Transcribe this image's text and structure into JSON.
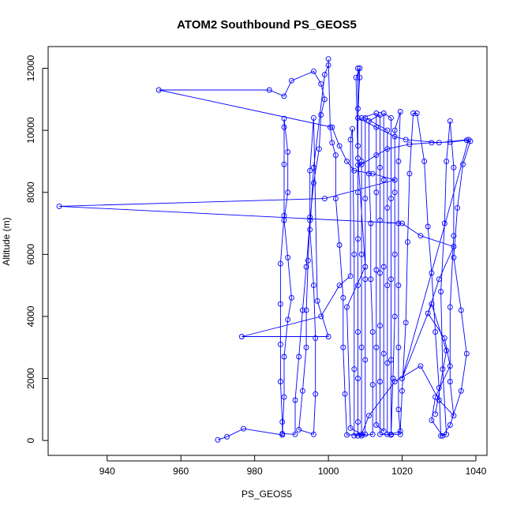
{
  "chart_data": {
    "type": "scatter",
    "title": "ATOM2 Southbound PS_GEOS5",
    "xlabel": "PS_GEOS5",
    "ylabel": "Altitude (m)",
    "xlim": [
      924,
      1043
    ],
    "ylim": [
      -480,
      12700
    ],
    "xticks": [
      940,
      960,
      980,
      1000,
      1020,
      1040
    ],
    "yticks": [
      0,
      2000,
      4000,
      6000,
      8000,
      10000,
      12000
    ],
    "grid": false,
    "marker": "open-circle",
    "connected": true,
    "color": "#0000ff",
    "series": [
      {
        "values": [
          [
            970.0,
            20
          ],
          [
            972.5,
            120
          ],
          [
            977.0,
            380
          ],
          [
            987.5,
            180
          ],
          [
            988.0,
            1400
          ],
          [
            988.0,
            2700
          ],
          [
            989.0,
            3900
          ],
          [
            990.0,
            4600
          ],
          [
            989.0,
            5900
          ],
          [
            988.0,
            7100
          ],
          [
            989.0,
            8000
          ],
          [
            989.0,
            9300
          ],
          [
            988.0,
            10380
          ],
          [
            988.0,
            10100
          ],
          [
            988.0,
            8900
          ],
          [
            988.0,
            7250
          ],
          [
            987.0,
            5700
          ],
          [
            987.0,
            4400
          ],
          [
            987.0,
            3100
          ],
          [
            987.0,
            1900
          ],
          [
            987.5,
            600
          ],
          [
            987.5,
            220
          ],
          [
            991.0,
            200
          ],
          [
            991.0,
            1300
          ],
          [
            992.0,
            2700
          ],
          [
            993.0,
            4200
          ],
          [
            994.0,
            5600
          ],
          [
            995.0,
            7100
          ],
          [
            996.0,
            8300
          ],
          [
            997.5,
            9400
          ],
          [
            998.0,
            10500
          ],
          [
            999.0,
            11000
          ],
          [
            998.0,
            11500
          ],
          [
            996.0,
            11900
          ],
          [
            990.0,
            11600
          ],
          [
            988.0,
            11100
          ],
          [
            984.0,
            11300
          ],
          [
            954.0,
            11300
          ],
          [
            1001.0,
            10100
          ],
          [
            1003.0,
            9500
          ],
          [
            1005.0,
            9000
          ],
          [
            1007.0,
            8700
          ],
          [
            1012.0,
            8600
          ],
          [
            1018.0,
            8400
          ],
          [
            999.0,
            7800
          ],
          [
            927.0,
            7550
          ],
          [
            1020.0,
            7000
          ],
          [
            1025.0,
            6600
          ],
          [
            1034.0,
            6250
          ],
          [
            1030.0,
            5200
          ],
          [
            1027.0,
            4100
          ],
          [
            1031.5,
            3300
          ],
          [
            1033.0,
            2400
          ],
          [
            1029.0,
            1400
          ],
          [
            1028.0,
            650
          ],
          [
            1031.0,
            150
          ],
          [
            1033.0,
            500
          ],
          [
            1036.0,
            1600
          ],
          [
            1037.5,
            2800
          ],
          [
            1036.0,
            4200
          ],
          [
            1034.0,
            5900
          ],
          [
            1035.0,
            7500
          ],
          [
            1036.5,
            8900
          ],
          [
            1038.5,
            9650
          ],
          [
            1037.5,
            9680
          ],
          [
            1033.0,
            9620
          ],
          [
            1028.0,
            9600
          ],
          [
            1022.0,
            9550
          ],
          [
            1016.0,
            9400
          ],
          [
            1013.0,
            9200
          ],
          [
            1009.0,
            8900
          ],
          [
            1008.0,
            8880
          ],
          [
            1008.0,
            12000
          ],
          [
            1008.5,
            11700
          ],
          [
            1008.0,
            10700
          ],
          [
            1008.0,
            9500
          ],
          [
            1008.0,
            8000
          ],
          [
            1008.0,
            6500
          ],
          [
            1008.0,
            5000
          ],
          [
            1008.0,
            3500
          ],
          [
            1008.0,
            2000
          ],
          [
            1008.0,
            600
          ],
          [
            1008.0,
            150
          ],
          [
            1012.0,
            200
          ],
          [
            1012.0,
            1800
          ],
          [
            1012.0,
            3500
          ],
          [
            1011.5,
            5200
          ],
          [
            1011.5,
            7000
          ],
          [
            1011.0,
            8600
          ],
          [
            1011.0,
            10300
          ],
          [
            1014.0,
            10500
          ],
          [
            1014.0,
            8800
          ],
          [
            1014.0,
            7100
          ],
          [
            1014.0,
            5400
          ],
          [
            1014.0,
            3700
          ],
          [
            1014.0,
            1900
          ],
          [
            1014.0,
            200
          ],
          [
            1017.0,
            180
          ],
          [
            1017.5,
            2000
          ],
          [
            1018.0,
            4000
          ],
          [
            1018.0,
            6000
          ],
          [
            1018.0,
            8000
          ],
          [
            1018.0,
            10000
          ],
          [
            1019.5,
            10600
          ],
          [
            1019.0,
            9000
          ],
          [
            1019.0,
            7000
          ],
          [
            1019.0,
            5000
          ],
          [
            1019.0,
            3000
          ],
          [
            1019.0,
            1000
          ],
          [
            1019.5,
            200
          ],
          [
            1016.0,
            200
          ],
          [
            1016.0,
            2500
          ],
          [
            1016.0,
            5000
          ],
          [
            1016.0,
            7500
          ],
          [
            1016.0,
            10000
          ],
          [
            1010.0,
            10400
          ],
          [
            1010.0,
            7800
          ],
          [
            1010.0,
            5200
          ],
          [
            1010.0,
            2600
          ],
          [
            1010.0,
            200
          ],
          [
            1005.0,
            180
          ],
          [
            1004.5,
            1500
          ],
          [
            1004.0,
            3000
          ],
          [
            1004.0,
            4600
          ],
          [
            1003.0,
            6300
          ],
          [
            1002.0,
            7800
          ],
          [
            1002.0,
            9200
          ],
          [
            1001.0,
            9600
          ],
          [
            1000.5,
            10100
          ],
          [
            1000.0,
            12300
          ],
          [
            1000.0,
            12100
          ],
          [
            999.0,
            11800
          ],
          [
            996.0,
            8800
          ],
          [
            995.0,
            6800
          ],
          [
            996.0,
            5000
          ],
          [
            996.5,
            3300
          ],
          [
            996.5,
            1500
          ],
          [
            996.0,
            200
          ],
          [
            992.0,
            350
          ],
          [
            993.0,
            1600
          ],
          [
            994.0,
            3000
          ],
          [
            994.0,
            4200
          ],
          [
            994.5,
            5800
          ],
          [
            995.0,
            7200
          ],
          [
            995.0,
            8700
          ],
          [
            996.0,
            10400
          ],
          [
            997.0,
            4500
          ],
          [
            1000.0,
            3350
          ],
          [
            976.5,
            3350
          ],
          [
            998.0,
            4000
          ],
          [
            1003.0,
            5000
          ],
          [
            1006.0,
            5300
          ],
          [
            1006.0,
            9700
          ],
          [
            1006.5,
            10050
          ],
          [
            1007.0,
            6000
          ],
          [
            1007.0,
            2300
          ],
          [
            1007.0,
            150
          ],
          [
            1009.0,
            150
          ],
          [
            1009.0,
            3000
          ],
          [
            1009.0,
            6000
          ],
          [
            1009.0,
            9000
          ],
          [
            1009.0,
            10400
          ],
          [
            1013.0,
            10550
          ],
          [
            1013.0,
            8000
          ],
          [
            1013.0,
            5500
          ],
          [
            1013.0,
            3000
          ],
          [
            1013.0,
            500
          ],
          [
            1015.0,
            300
          ],
          [
            1015.0,
            2800
          ],
          [
            1015.0,
            5600
          ],
          [
            1015.0,
            8400
          ],
          [
            1015.0,
            10550
          ],
          [
            1017.0,
            10400
          ],
          [
            1017.0,
            7800
          ],
          [
            1017.0,
            5200
          ],
          [
            1017.0,
            2600
          ],
          [
            1017.0,
            200
          ],
          [
            1019.5,
            300
          ],
          [
            1020.0,
            1600
          ],
          [
            1021.0,
            3800
          ],
          [
            1021.5,
            6400
          ],
          [
            1022.0,
            8600
          ],
          [
            1023.0,
            10550
          ],
          [
            1024.0,
            10550
          ],
          [
            1026.0,
            9000
          ],
          [
            1027.0,
            6900
          ],
          [
            1028.0,
            5400
          ],
          [
            1029.0,
            3500
          ],
          [
            1030.0,
            1700
          ],
          [
            1030.5,
            150
          ],
          [
            1032.0,
            200
          ],
          [
            1031.0,
            2300
          ],
          [
            1030.5,
            4800
          ],
          [
            1031.5,
            7000
          ],
          [
            1032.0,
            9000
          ],
          [
            1033.0,
            10300
          ],
          [
            1034.0,
            8800
          ],
          [
            1034.0,
            6600
          ],
          [
            1033.0,
            4300
          ],
          [
            1033.0,
            1900
          ],
          [
            1034.0,
            800
          ],
          [
            1030.0,
            1300
          ],
          [
            1025.0,
            2400
          ],
          [
            1018.0,
            1900
          ],
          [
            1011.0,
            800
          ],
          [
            1009.0,
            200
          ],
          [
            1006.0,
            400
          ],
          [
            1005.0,
            4300
          ],
          [
            1010.0,
            5600
          ],
          [
            1008.0,
            9100
          ],
          [
            1007.5,
            11700
          ],
          [
            1008.5,
            12000
          ],
          [
            1008.0,
            10400
          ],
          [
            1013.0,
            10100
          ],
          [
            1018.0,
            9800
          ],
          [
            1021.0,
            9700
          ],
          [
            1030.0,
            9600
          ],
          [
            1038.0,
            9700
          ],
          [
            1020.0,
            2000
          ],
          [
            1028.0,
            4400
          ],
          [
            1032.0,
            2900
          ],
          [
            1029.0,
            850
          ]
        ]
      }
    ]
  }
}
